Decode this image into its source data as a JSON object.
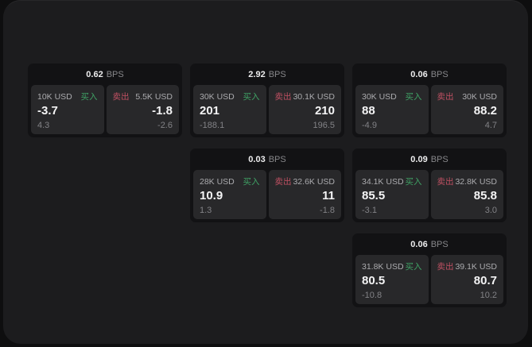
{
  "labels": {
    "buy": "买入",
    "sell": "卖出",
    "bps": "BPS"
  },
  "colors": {
    "window_bg": "#1c1c1e",
    "card_bg": "#121214",
    "pane_bg": "#28282a",
    "buy_green": "#3fa265",
    "sell_red": "#bf5062",
    "price_white": "#f4f4f5",
    "label_gray": "#ababae"
  },
  "cards": [
    {
      "bps": "0.62",
      "buy": {
        "amount": "10K USD",
        "price": "-3.7",
        "delta": "4.3"
      },
      "sell": {
        "amount": "5.5K USD",
        "price": "-1.8",
        "delta": "-2.6"
      }
    },
    {
      "bps": "2.92",
      "buy": {
        "amount": "30K USD",
        "price": "201",
        "delta": "-188.1"
      },
      "sell": {
        "amount": "30.1K USD",
        "price": "210",
        "delta": "196.5"
      }
    },
    {
      "bps": "0.06",
      "buy": {
        "amount": "30K USD",
        "price": "88",
        "delta": "-4.9"
      },
      "sell": {
        "amount": "30K USD",
        "price": "88.2",
        "delta": "4.7"
      }
    },
    {
      "bps": "0.03",
      "buy": {
        "amount": "28K USD",
        "price": "10.9",
        "delta": "1.3"
      },
      "sell": {
        "amount": "32.6K USD",
        "price": "11",
        "delta": "-1.8"
      }
    },
    {
      "bps": "0.09",
      "buy": {
        "amount": "34.1K USD",
        "price": "85.5",
        "delta": "-3.1"
      },
      "sell": {
        "amount": "32.8K USD",
        "price": "85.8",
        "delta": "3.0"
      }
    },
    {
      "bps": "0.06",
      "buy": {
        "amount": "31.8K USD",
        "price": "80.5",
        "delta": "-10.8"
      },
      "sell": {
        "amount": "39.1K USD",
        "price": "80.7",
        "delta": "10.2"
      }
    }
  ]
}
